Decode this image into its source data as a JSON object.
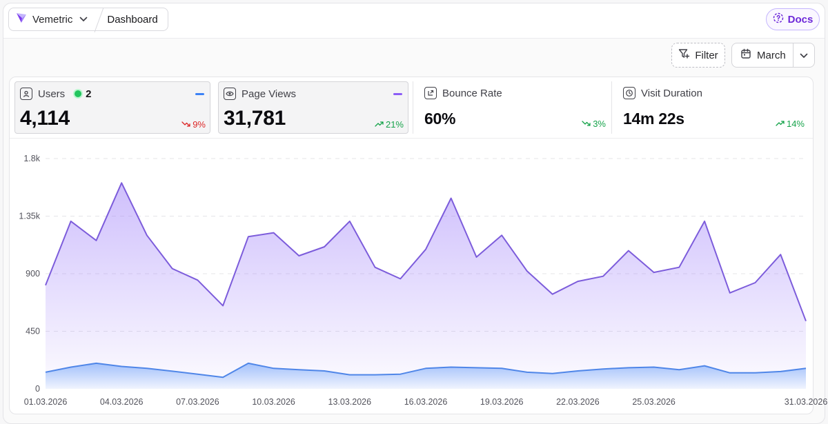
{
  "header": {
    "app_name": "Vemetric",
    "page_title": "Dashboard",
    "docs_label": "Docs"
  },
  "toolbar": {
    "filter_label": "Filter",
    "date_label": "March"
  },
  "kpis": [
    {
      "label": "Users",
      "live_count": "2",
      "value": "4,114",
      "change": "9%",
      "trend": "down",
      "icon": "user-icon",
      "selected": true,
      "series_color": "#3b82f6"
    },
    {
      "label": "Page Views",
      "value": "31,781",
      "change": "21%",
      "trend": "up",
      "icon": "eye-icon",
      "selected": true,
      "series_color": "#8b5cf6"
    },
    {
      "label": "Bounce Rate",
      "value": "60%",
      "change": "3%",
      "trend": "down",
      "icon": "bounce-icon",
      "selected": false
    },
    {
      "label": "Visit Duration",
      "value": "14m 22s",
      "change": "14%",
      "trend": "up",
      "icon": "clock-icon",
      "selected": false
    }
  ],
  "chart_data": {
    "type": "area",
    "x": [
      "01.03.2026",
      "02.03.2026",
      "03.03.2026",
      "04.03.2026",
      "05.03.2026",
      "06.03.2026",
      "07.03.2026",
      "08.03.2026",
      "09.03.2026",
      "10.03.2026",
      "11.03.2026",
      "12.03.2026",
      "13.03.2026",
      "14.03.2026",
      "15.03.2026",
      "16.03.2026",
      "17.03.2026",
      "18.03.2026",
      "19.03.2026",
      "20.03.2026",
      "21.03.2026",
      "22.03.2026",
      "23.03.2026",
      "24.03.2026",
      "25.03.2026",
      "26.03.2026",
      "27.03.2026",
      "28.03.2026",
      "29.03.2026",
      "30.03.2026",
      "31.03.2026"
    ],
    "x_tick_labels": [
      "01.03.2026",
      "04.03.2026",
      "07.03.2026",
      "10.03.2026",
      "13.03.2026",
      "16.03.2026",
      "19.03.2026",
      "22.03.2026",
      "25.03.2026",
      "31.03.2026"
    ],
    "x_tick_indices": [
      0,
      3,
      6,
      9,
      12,
      15,
      18,
      21,
      24,
      30
    ],
    "y_ticks": [
      0,
      450,
      900,
      1350,
      1800
    ],
    "y_tick_labels": [
      "0",
      "450",
      "900",
      "1.35k",
      "1.8k"
    ],
    "ylim": [
      0,
      1800
    ],
    "grid": true,
    "series": [
      {
        "name": "Page Views",
        "color": "#7c5cdb",
        "values": [
          810,
          1310,
          1160,
          1610,
          1200,
          940,
          850,
          650,
          1190,
          1220,
          1040,
          1110,
          1310,
          950,
          860,
          1090,
          1490,
          1030,
          1200,
          920,
          740,
          840,
          880,
          1080,
          910,
          950,
          1310,
          750,
          830,
          1050,
          530
        ]
      },
      {
        "name": "Users",
        "color": "#4f86e8",
        "values": [
          130,
          170,
          200,
          175,
          160,
          138,
          115,
          90,
          200,
          160,
          150,
          140,
          110,
          110,
          115,
          160,
          170,
          165,
          160,
          130,
          120,
          140,
          155,
          165,
          170,
          150,
          180,
          125,
          125,
          135,
          160
        ]
      }
    ]
  }
}
